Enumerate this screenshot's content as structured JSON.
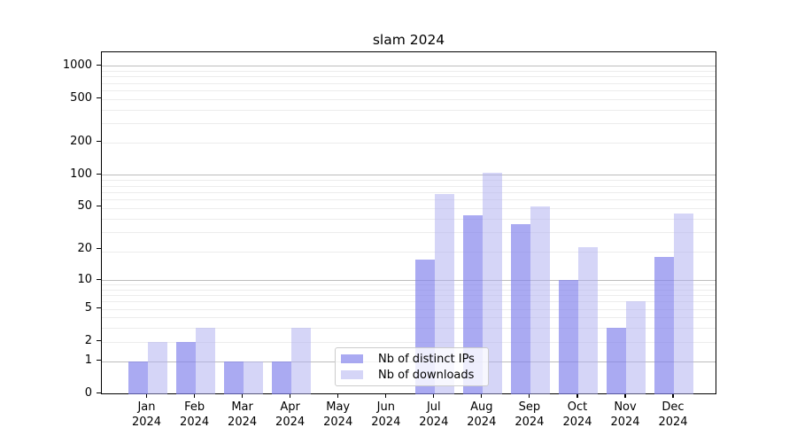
{
  "chart_data": {
    "type": "bar",
    "title": "slam 2024",
    "categories": [
      "Jan 2024",
      "Feb 2024",
      "Mar 2024",
      "Apr 2024",
      "May 2024",
      "Jun 2024",
      "Jul 2024",
      "Aug 2024",
      "Sep 2024",
      "Oct 2024",
      "Nov 2024",
      "Dec 2024"
    ],
    "series": [
      {
        "name": "Nb of distinct IPs",
        "color": "rgba(130,130,236,0.68)",
        "solid_color": "#aaaaf2",
        "values": [
          1,
          2,
          1,
          1,
          0,
          0,
          16,
          42,
          35,
          10,
          3,
          17
        ]
      },
      {
        "name": "Nb of downloads",
        "color": "rgba(175,175,240,0.52)",
        "solid_color": "#d5d5f7",
        "values": [
          2,
          3,
          1,
          3,
          0,
          0,
          67,
          105,
          51,
          21,
          6,
          44
        ]
      }
    ],
    "xlabel": "",
    "ylabel": "",
    "yticks": [
      0,
      1,
      2,
      5,
      10,
      20,
      50,
      100,
      200,
      500,
      1000
    ],
    "yscale": "log10(value+1)",
    "ylim": [
      0,
      1350
    ],
    "grid": true,
    "grid_major_at": [
      1,
      10,
      100,
      1000
    ],
    "legend": {
      "position": "lower-center",
      "entries": [
        "Nb of distinct IPs",
        "Nb of downloads"
      ]
    }
  }
}
